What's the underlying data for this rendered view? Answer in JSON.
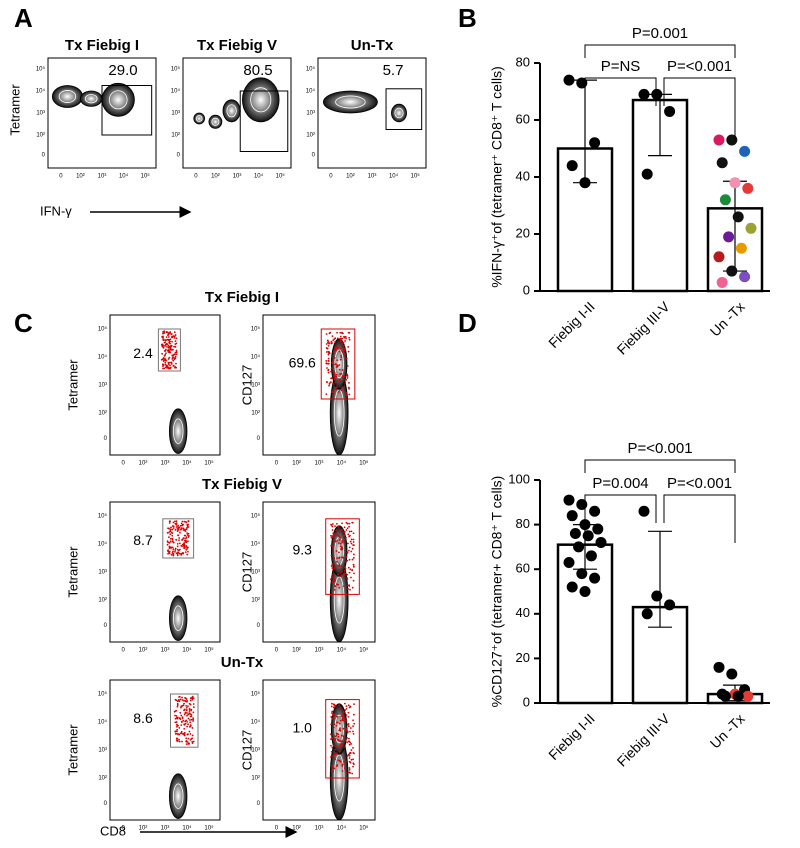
{
  "panel_labels": [
    "A",
    "B",
    "C",
    "D"
  ],
  "flow_a": {
    "titles": [
      "Tx Fiebig I",
      "Tx Fiebig V",
      "Un-Tx"
    ],
    "gate_values": [
      "29.0",
      "80.5",
      "5.7"
    ],
    "ylabel": "Tetramer",
    "xlabel": "IFN-γ",
    "tick_labels": [
      "0",
      "10²",
      "10³",
      "10⁴",
      "10⁵"
    ]
  },
  "flow_c": {
    "titles": [
      "Tx Fiebig I",
      "Tx Fiebig V",
      "Un-Tx"
    ],
    "left_gate_values": [
      "2.4",
      "8.7",
      "8.6"
    ],
    "right_gate_values": [
      "69.6",
      "9.3",
      "1.0"
    ],
    "left_ylabel": "Tetramer",
    "right_ylabel": "CD127",
    "xlabel": "CD8",
    "tick_labels": [
      "0",
      "10²",
      "10³",
      "10⁴",
      "10⁵"
    ]
  },
  "chart_data": [
    {
      "type": "bar",
      "ylabel": "%IFN-γ⁺of (tetramer⁺ CD8⁺ T cells)",
      "categories": [
        "Fiebig I-II",
        "Fiebig III-V",
        "Un -Tx"
      ],
      "values": [
        50,
        67,
        29
      ],
      "error_low": [
        38,
        47.5,
        7
      ],
      "error_high": [
        74,
        69,
        38.5
      ],
      "points": [
        [
          74,
          73,
          52,
          44,
          38
        ],
        [
          69,
          69,
          63,
          41
        ],
        [
          53,
          53,
          49,
          45,
          38,
          36,
          32,
          26,
          22,
          19,
          15,
          12,
          7,
          5,
          3
        ]
      ],
      "point_colors": [
        [
          "#000",
          "#000",
          "#000",
          "#000",
          "#000"
        ],
        [
          "#000",
          "#000",
          "#000",
          "#000"
        ],
        [
          "#d81b60",
          "#111111",
          "#1e63b8",
          "#111111",
          "#f48fb1",
          "#e53935",
          "#1b8a3a",
          "#111111",
          "#9aa332",
          "#6a1b9a",
          "#e69b00",
          "#b71c1c",
          "#111111",
          "#7b4fbf",
          "#f06292"
        ]
      ],
      "ylim": [
        0,
        80
      ],
      "yticks": [
        0,
        20,
        40,
        60,
        80
      ],
      "comparisons": [
        "P=0.001",
        "P=NS",
        "P=<0.001"
      ]
    },
    {
      "type": "bar",
      "ylabel": "%CD127⁺of (tetramer+ CD8⁺ T cells)",
      "categories": [
        "Fiebig I-II",
        "Fiebig III-V",
        "Un -Tx"
      ],
      "values": [
        71,
        43,
        4
      ],
      "error_low": [
        60,
        34,
        1
      ],
      "error_high": [
        80,
        77,
        8
      ],
      "points": [
        [
          91,
          89,
          86,
          84,
          80,
          78,
          76,
          75,
          72,
          70,
          66,
          63,
          58,
          56,
          52,
          50
        ],
        [
          86,
          48,
          44,
          40
        ],
        [
          16,
          13,
          6,
          4,
          4,
          3,
          3,
          3
        ]
      ],
      "point_colors": [
        [
          "#000",
          "#000",
          "#000",
          "#000",
          "#000",
          "#000",
          "#000",
          "#000",
          "#000",
          "#000",
          "#000",
          "#000",
          "#000",
          "#000",
          "#000",
          "#000"
        ],
        [
          "#000",
          "#000",
          "#000",
          "#000"
        ],
        [
          "#000",
          "#000",
          "#000",
          "#000",
          "#e53935",
          "#e53935",
          "#000",
          "#000"
        ]
      ],
      "ylim": [
        0,
        100
      ],
      "yticks": [
        0,
        20,
        40,
        60,
        80,
        100
      ],
      "comparisons": [
        "P=<0.001",
        "P=0.004",
        "P=<0.001"
      ]
    }
  ]
}
